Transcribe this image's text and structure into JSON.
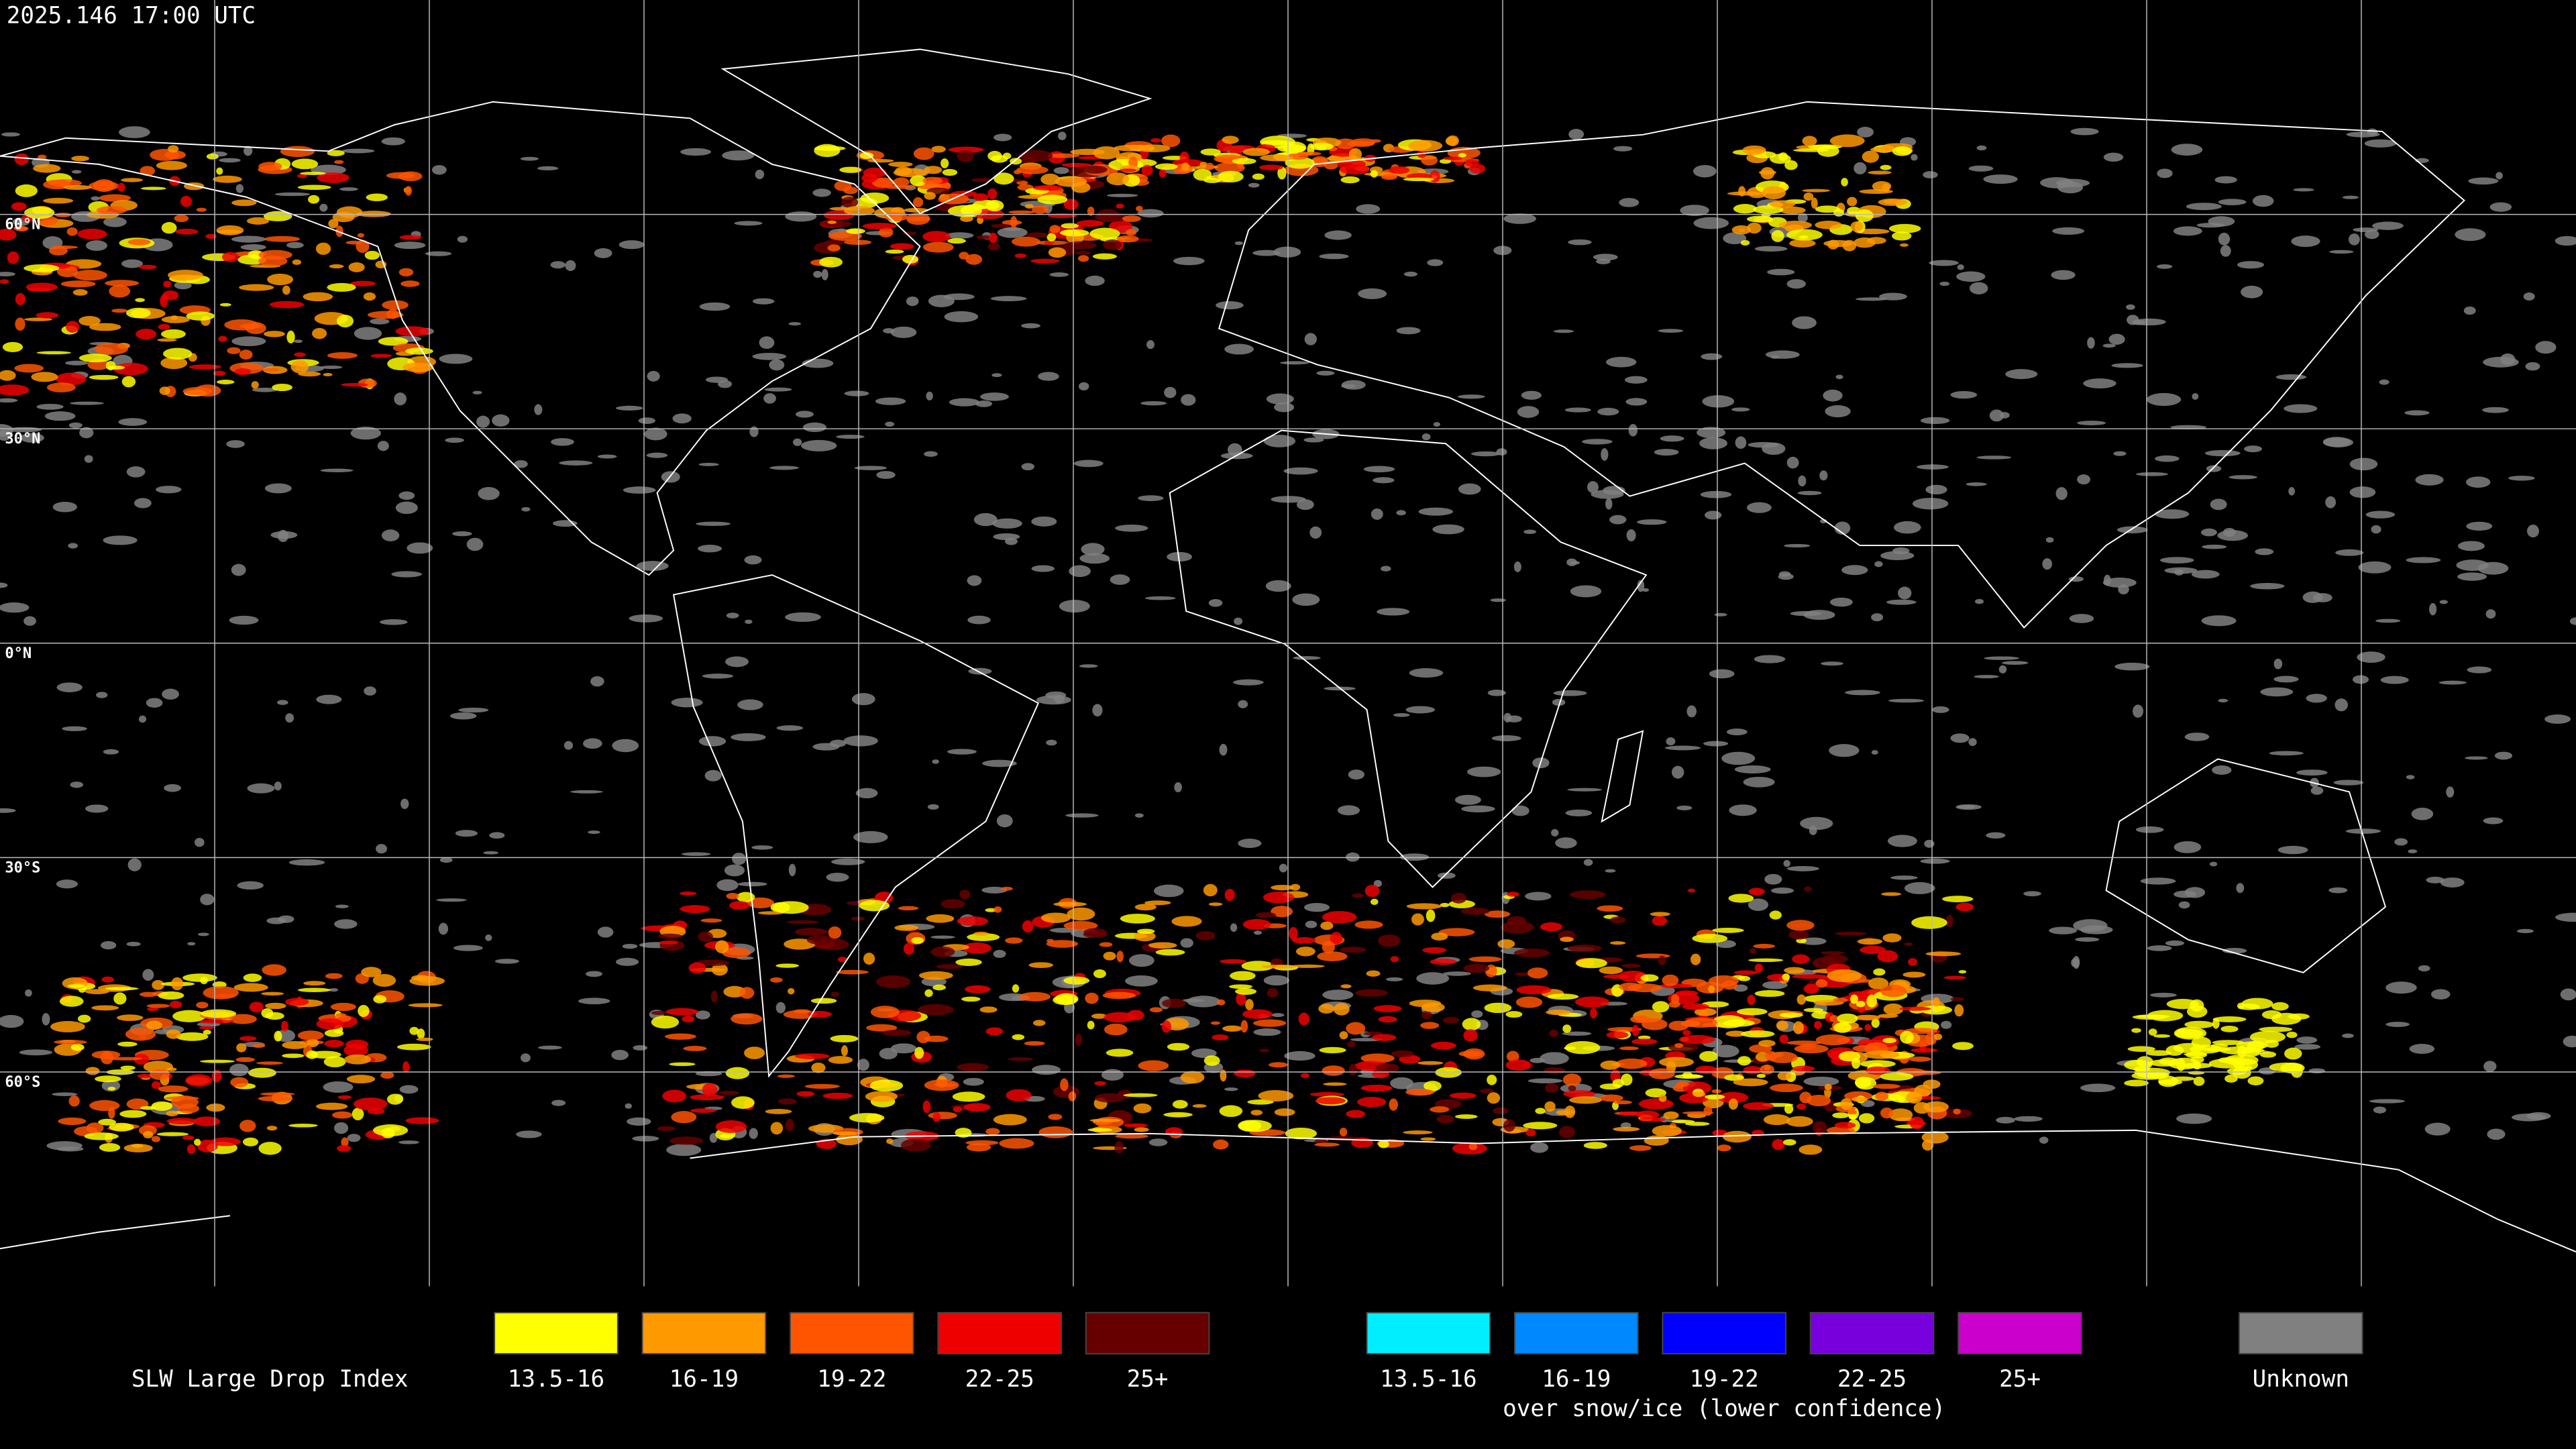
{
  "header": {
    "timestamp": "2025.146 17:00 UTC"
  },
  "map": {
    "lat_labels": [
      "60°N",
      "30°N",
      "0°N",
      "30°S",
      "60°S"
    ]
  },
  "legend": {
    "title": "SLW Large Drop Index",
    "groups": [
      {
        "items": [
          {
            "label": "13.5-16",
            "color": "#ffff00"
          },
          {
            "label": "16-19",
            "color": "#ff9900"
          },
          {
            "label": "19-22",
            "color": "#ff5500"
          },
          {
            "label": "22-25",
            "color": "#ee0000"
          },
          {
            "label": "25+",
            "color": "#660000"
          }
        ]
      },
      {
        "items": [
          {
            "label": "13.5-16",
            "color": "#00eeff"
          },
          {
            "label": "16-19",
            "color": "#0088ff"
          },
          {
            "label": "19-22",
            "color": "#0000ff"
          },
          {
            "label": "22-25",
            "color": "#7700dd"
          },
          {
            "label": "25+",
            "color": "#cc00cc"
          }
        ],
        "caption": "over snow/ice (lower confidence)"
      },
      {
        "items": [
          {
            "label": "Unknown",
            "color": "#808080"
          }
        ]
      }
    ]
  }
}
